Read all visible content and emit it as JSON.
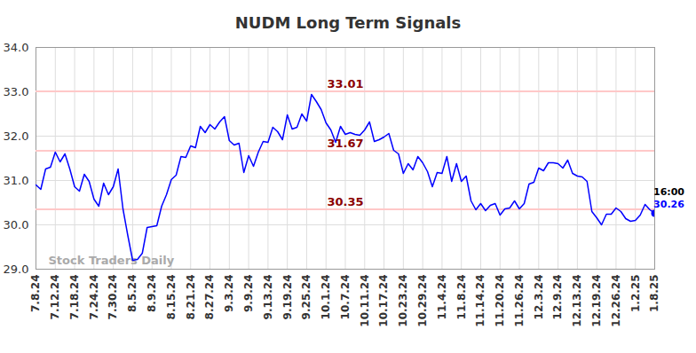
{
  "chart_data": {
    "type": "line",
    "title": "NUDM Long Term Signals",
    "color": "#0000ff",
    "grid": true,
    "categories": [
      "7.8.24",
      null,
      null,
      null,
      "7.12.24",
      null,
      null,
      null,
      "7.18.24",
      null,
      null,
      null,
      "7.24.24",
      null,
      null,
      null,
      "7.30.24",
      null,
      null,
      null,
      "8.5.24",
      null,
      null,
      null,
      "8.9.24",
      null,
      null,
      null,
      "8.15.24",
      null,
      null,
      null,
      "8.21.24",
      null,
      null,
      null,
      "8.27.24",
      null,
      null,
      null,
      "9.3.24",
      null,
      null,
      null,
      "9.9.24",
      null,
      null,
      null,
      "9.13.24",
      null,
      null,
      null,
      "9.19.24",
      null,
      null,
      null,
      "9.25.24",
      null,
      null,
      null,
      "10.1.24",
      null,
      null,
      null,
      "10.7.24",
      null,
      null,
      null,
      "10.11.24",
      null,
      null,
      null,
      "10.17.24",
      null,
      null,
      null,
      "10.23.24",
      null,
      null,
      null,
      "10.29.24",
      null,
      null,
      null,
      "11.4.24",
      null,
      null,
      null,
      "11.8.24",
      null,
      null,
      null,
      "11.14.24",
      null,
      null,
      null,
      "11.20.24",
      null,
      null,
      null,
      "11.26.24",
      null,
      null,
      null,
      "12.3.24",
      null,
      null,
      null,
      "12.9.24",
      null,
      null,
      null,
      "12.13.24",
      null,
      null,
      null,
      "12.19.24",
      null,
      null,
      null,
      "12.26.24",
      null,
      null,
      null,
      "1.2.25",
      null,
      null,
      null,
      "1.8.25"
    ],
    "values": [
      30.9,
      30.8,
      31.26,
      31.3,
      31.64,
      31.42,
      31.6,
      31.26,
      30.86,
      30.76,
      31.14,
      30.98,
      30.58,
      30.42,
      30.94,
      30.68,
      30.86,
      31.26,
      30.36,
      29.76,
      29.2,
      29.22,
      29.36,
      29.94,
      29.96,
      29.98,
      30.42,
      30.68,
      31.02,
      31.12,
      31.54,
      31.52,
      31.78,
      31.74,
      32.22,
      32.08,
      32.26,
      32.16,
      32.32,
      32.44,
      31.9,
      31.8,
      31.84,
      31.18,
      31.56,
      31.32,
      31.64,
      31.88,
      31.86,
      32.2,
      32.1,
      31.92,
      32.48,
      32.16,
      32.2,
      32.5,
      32.34,
      32.94,
      32.78,
      32.6,
      32.3,
      32.14,
      31.86,
      32.22,
      32.04,
      32.08,
      32.04,
      32.02,
      32.14,
      32.32,
      31.88,
      31.92,
      31.98,
      32.06,
      31.68,
      31.6,
      31.16,
      31.38,
      31.24,
      31.54,
      31.4,
      31.2,
      30.86,
      31.18,
      31.16,
      31.54,
      30.98,
      31.38,
      30.98,
      31.1,
      30.54,
      30.34,
      30.48,
      30.32,
      30.44,
      30.48,
      30.22,
      30.36,
      30.38,
      30.54,
      30.36,
      30.48,
      30.92,
      30.96,
      31.28,
      31.22,
      31.4,
      31.4,
      31.38,
      31.28,
      31.46,
      31.16,
      31.1,
      31.08,
      30.98,
      30.3,
      30.16,
      30.0,
      30.24,
      30.24,
      30.38,
      30.3,
      30.14,
      30.08,
      30.1,
      30.22,
      30.46,
      30.34,
      30.26
    ],
    "ylim": [
      29,
      34
    ],
    "yticks": [
      29,
      30,
      31,
      32,
      33,
      34
    ],
    "signal_levels": [
      33.01,
      31.67,
      30.35
    ],
    "last_point": {
      "time": "16:00",
      "value": 30.26
    },
    "watermark": "Stock Traders Daily"
  }
}
